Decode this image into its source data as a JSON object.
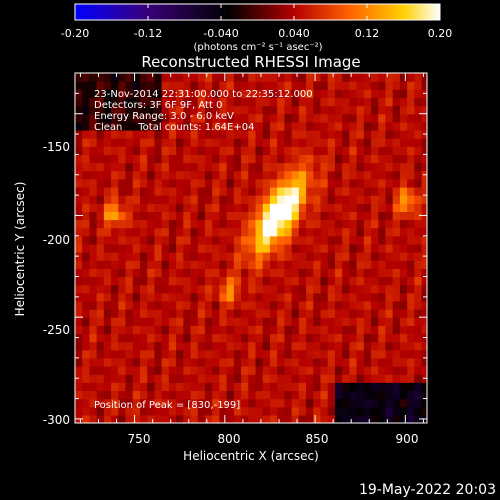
{
  "colorbar": {
    "ticks": [
      "-0.20",
      "-0.12",
      "-0.040",
      "0.040",
      "0.12",
      "0.20"
    ],
    "units": "(photons cm⁻² s⁻¹ asec⁻²)"
  },
  "footer_date": "19-May-2022 20:03",
  "chart_data": {
    "type": "heatmap",
    "title": "Reconstructed RHESSI Image",
    "xlabel": "Heliocentric X (arcsec)",
    "ylabel": "Heliocentric Y (arcsec)",
    "xlim": [
      717,
      912
    ],
    "ylim": [
      -302,
      -130
    ],
    "x_ticks": [
      "750",
      "800",
      "850",
      "900"
    ],
    "y_ticks": [
      "-150",
      "-200",
      "-250",
      "-300"
    ],
    "color_range": [
      -0.2,
      0.2
    ],
    "colormap": [
      "#0000ff",
      "#3a0078",
      "#000000",
      "#b40000",
      "#ff6000",
      "#ffd000",
      "#ffffff"
    ],
    "info_lines": [
      "23-Nov-2014 22:31:00.000 to 22:35:12.000",
      "Detectors: 3F 6F 9F, Att 0",
      "Energy Range: 3.0 - 6.0 keV",
      "Clean     Total counts: 1.64E+04"
    ],
    "peak_label": "Position of Peak = [830,-199]",
    "peak_position": [
      830,
      -199
    ],
    "sources": [
      {
        "x": 830,
        "y": -199,
        "amplitude": 0.2
      },
      {
        "x": 739,
        "y": -199,
        "amplitude": 0.09
      },
      {
        "x": 901,
        "y": -193,
        "amplitude": 0.09
      },
      {
        "x": 802,
        "y": -237,
        "amplitude": 0.07
      }
    ]
  }
}
